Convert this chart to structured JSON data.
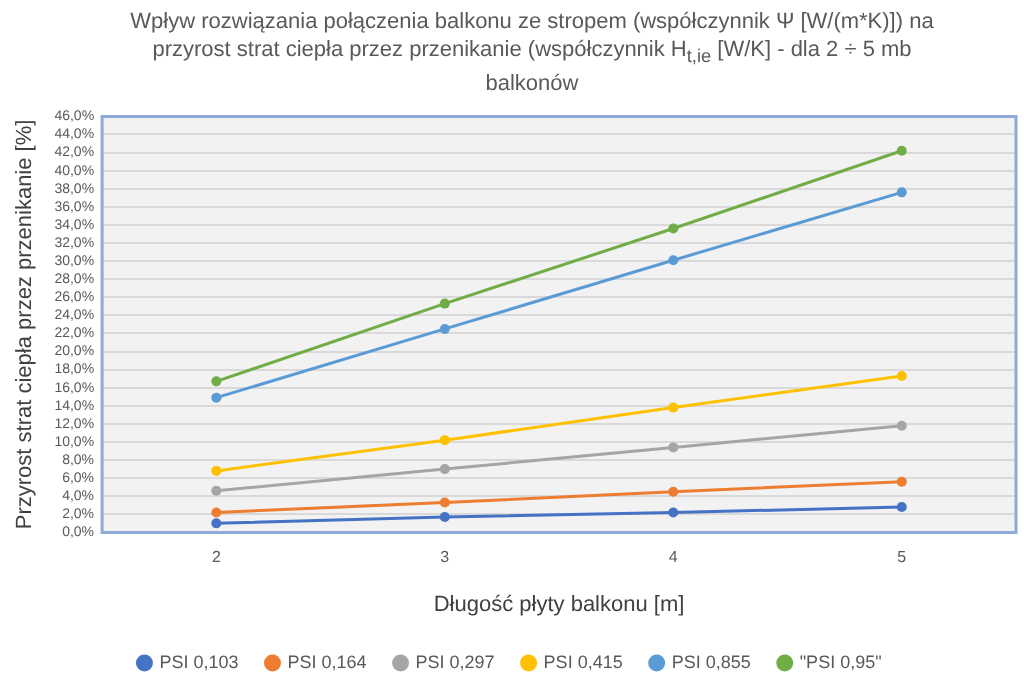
{
  "chart_data": {
    "type": "line",
    "title": "Wpływ rozwiązania połączenia  balkonu ze stropem (współczynnik Ψ [W/(m*K)]) na przyrost strat ciepła przez przenikanie (współczynnik H$_{t,ie}$ [W/K] - dla 2 ÷ 5 mb balkonów",
    "xlabel": "Długość płyty balkonu [m]",
    "ylabel": "Przyrost strat ciepła przez przenikanie [%]",
    "categories": [
      "2",
      "3",
      "4",
      "5"
    ],
    "series": [
      {
        "name": "PSI 0,103",
        "color": "#4472c4",
        "values": [
          1.0,
          1.7,
          2.2,
          2.8
        ]
      },
      {
        "name": "PSI 0,164",
        "color": "#ed7d31",
        "values": [
          2.2,
          3.3,
          4.5,
          5.6
        ]
      },
      {
        "name": "PSI 0,297",
        "color": "#a5a5a5",
        "values": [
          4.6,
          7.0,
          9.4,
          11.8
        ]
      },
      {
        "name": "PSI 0,415",
        "color": "#ffc000",
        "values": [
          6.8,
          10.2,
          13.8,
          17.3
        ]
      },
      {
        "name": "PSI 0,855",
        "color": "#5b9bd5",
        "values": [
          14.9,
          22.5,
          30.1,
          37.6
        ]
      },
      {
        "name": "\"PSI 0,95\"",
        "color": "#70ad47",
        "values": [
          16.7,
          25.3,
          33.6,
          42.2
        ]
      }
    ],
    "ylim": [
      0,
      46
    ],
    "yticks": [
      {
        "value": 0,
        "label": "0,0%"
      },
      {
        "value": 2,
        "label": "2,0%"
      },
      {
        "value": 4,
        "label": "4,0%"
      },
      {
        "value": 6,
        "label": "6,0%"
      },
      {
        "value": 8,
        "label": "8,0%"
      },
      {
        "value": 10,
        "label": "10,0%"
      },
      {
        "value": 12,
        "label": "12,0%"
      },
      {
        "value": 14,
        "label": "14,0%"
      },
      {
        "value": 16,
        "label": "16,0%"
      },
      {
        "value": 18,
        "label": "18,0%"
      },
      {
        "value": 20,
        "label": "20,0%"
      },
      {
        "value": 22,
        "label": "22,0%"
      },
      {
        "value": 24,
        "label": "24,0%"
      },
      {
        "value": 26,
        "label": "26,0%"
      },
      {
        "value": 28,
        "label": "28,0%"
      },
      {
        "value": 30,
        "label": "30,0%"
      },
      {
        "value": 32,
        "label": "32,0%"
      },
      {
        "value": 34,
        "label": "34,0%"
      },
      {
        "value": 36,
        "label": "36,0%"
      },
      {
        "value": 38,
        "label": "38,0%"
      },
      {
        "value": 40,
        "label": "40,0%"
      },
      {
        "value": 42,
        "label": "42,0%"
      },
      {
        "value": 44,
        "label": "44,0%"
      },
      {
        "value": 46,
        "label": "46,0%"
      }
    ],
    "grid": "y",
    "legend": "bottom",
    "marker": "circle",
    "line_style": "solid"
  }
}
